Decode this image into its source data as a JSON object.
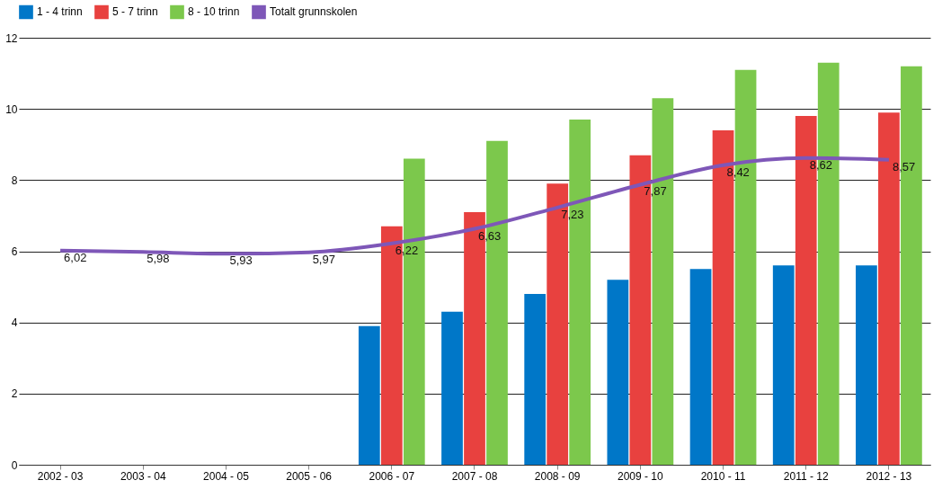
{
  "chart_data": {
    "type": "bar",
    "categories": [
      "2002 - 03",
      "2003 - 04",
      "2004 - 05",
      "2005 - 06",
      "2006 - 07",
      "2007 - 08",
      "2008 - 09",
      "2009 - 10",
      "2010 - 11",
      "2011 - 12",
      "2012 - 13"
    ],
    "series": [
      {
        "name": "1 - 4 trinn",
        "color": "#0077c8",
        "values": [
          null,
          null,
          null,
          null,
          3.9,
          4.3,
          4.8,
          5.2,
          5.5,
          5.6,
          5.6
        ]
      },
      {
        "name": "5 - 7 trinn",
        "color": "#e8413f",
        "values": [
          null,
          null,
          null,
          null,
          6.7,
          7.1,
          7.9,
          8.7,
          9.4,
          9.8,
          9.9
        ]
      },
      {
        "name": "8 - 10 trinn",
        "color": "#7cc84c",
        "values": [
          null,
          null,
          null,
          null,
          8.6,
          9.1,
          9.7,
          10.3,
          11.1,
          11.3,
          11.2
        ]
      },
      {
        "name": "Totalt grunnskolen",
        "type": "line",
        "color": "#7e57b8",
        "values": [
          6.02,
          5.98,
          5.93,
          5.97,
          6.22,
          6.63,
          7.23,
          7.87,
          8.42,
          8.62,
          8.57
        ],
        "value_labels": [
          "6,02",
          "5,98",
          "5,93",
          "5,97",
          "6,22",
          "6,63",
          "7,23",
          "7,87",
          "8,42",
          "8,62",
          "8,57"
        ]
      }
    ],
    "ylim": [
      0,
      12
    ],
    "yticks": [
      0,
      2,
      4,
      6,
      8,
      10,
      12
    ],
    "grid": "y",
    "legend": "top",
    "marker": "none",
    "line_style": "solid"
  }
}
